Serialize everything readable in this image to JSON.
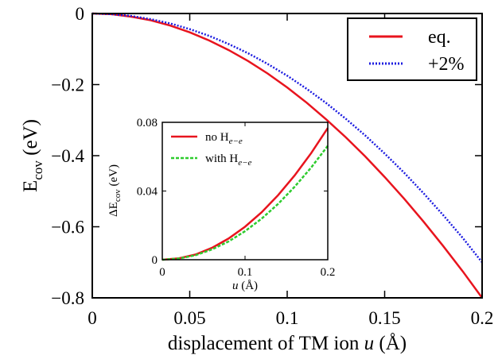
{
  "chart_data": [
    {
      "type": "line",
      "xlabel_prefix": "displacement of TM ion ",
      "xlabel_var": "u",
      "xlabel_suffix": " (Å)",
      "ylabel_main": "E",
      "ylabel_sub": "cov",
      "ylabel_unit": " (eV)",
      "xlim": [
        0,
        0.2
      ],
      "ylim": [
        -0.8,
        0
      ],
      "x_ticks": [
        0,
        0.05,
        0.1,
        0.15,
        0.2
      ],
      "x_tick_labels": [
        "0",
        "0.05",
        "0.1",
        "0.15",
        "0.2"
      ],
      "y_ticks": [
        0,
        -0.2,
        -0.4,
        -0.6,
        -0.8
      ],
      "y_tick_labels": [
        "0",
        "−0.2",
        "−0.4",
        "−0.6",
        "−0.8"
      ],
      "grid": false,
      "legend_position": "top-right",
      "series": [
        {
          "name": "eq.",
          "color": "#e8141e",
          "style": "solid",
          "x": [
            0,
            0.01,
            0.02,
            0.03,
            0.04,
            0.05,
            0.06,
            0.07,
            0.08,
            0.09,
            0.1,
            0.11,
            0.12,
            0.13,
            0.14,
            0.15,
            0.16,
            0.17,
            0.18,
            0.19,
            0.2
          ],
          "y": [
            0,
            -0.002,
            -0.009,
            -0.019,
            -0.034,
            -0.053,
            -0.076,
            -0.103,
            -0.134,
            -0.169,
            -0.208,
            -0.251,
            -0.298,
            -0.348,
            -0.402,
            -0.46,
            -0.521,
            -0.586,
            -0.654,
            -0.725,
            -0.8
          ]
        },
        {
          "name": "+2%",
          "color": "#1c1ce0",
          "style": "dotted",
          "x": [
            0,
            0.01,
            0.02,
            0.03,
            0.04,
            0.05,
            0.06,
            0.07,
            0.08,
            0.09,
            0.1,
            0.11,
            0.12,
            0.13,
            0.14,
            0.15,
            0.16,
            0.17,
            0.18,
            0.19,
            0.2
          ],
          "y": [
            0,
            -0.002,
            -0.007,
            -0.016,
            -0.028,
            -0.044,
            -0.063,
            -0.086,
            -0.112,
            -0.142,
            -0.175,
            -0.212,
            -0.252,
            -0.296,
            -0.343,
            -0.394,
            -0.448,
            -0.506,
            -0.567,
            -0.631,
            -0.7
          ]
        }
      ]
    },
    {
      "type": "line",
      "role": "inset",
      "xlabel_var": "u",
      "xlabel_suffix": " (Å)",
      "ylabel_main": "ΔE",
      "ylabel_sub": "cov",
      "ylabel_unit": " (eV)",
      "xlim": [
        0,
        0.2
      ],
      "ylim": [
        0,
        0.08
      ],
      "x_ticks": [
        0,
        0.1,
        0.2
      ],
      "x_tick_labels": [
        "0",
        "0.1",
        "0.2"
      ],
      "y_ticks": [
        0,
        0.04,
        0.08
      ],
      "y_tick_labels": [
        "0",
        "0.04",
        "0.08"
      ],
      "grid": false,
      "legend_position": "top-left",
      "series": [
        {
          "name": "no H",
          "name_sub": "e−e",
          "color": "#e8141e",
          "style": "solid",
          "x": [
            0,
            0.02,
            0.04,
            0.06,
            0.08,
            0.1,
            0.12,
            0.14,
            0.16,
            0.18,
            0.2
          ],
          "y": [
            0,
            0.0008,
            0.003,
            0.0069,
            0.0123,
            0.0192,
            0.0276,
            0.0376,
            0.0491,
            0.0621,
            0.0767
          ]
        },
        {
          "name": "with H",
          "name_sub": "e−e",
          "color": "#2ecc2e",
          "style": "dashed",
          "x": [
            0,
            0.02,
            0.04,
            0.06,
            0.08,
            0.1,
            0.12,
            0.14,
            0.16,
            0.18,
            0.2
          ],
          "y": [
            0,
            0.0007,
            0.0026,
            0.006,
            0.0106,
            0.0166,
            0.0239,
            0.0325,
            0.0425,
            0.0537,
            0.0663
          ]
        }
      ]
    }
  ]
}
